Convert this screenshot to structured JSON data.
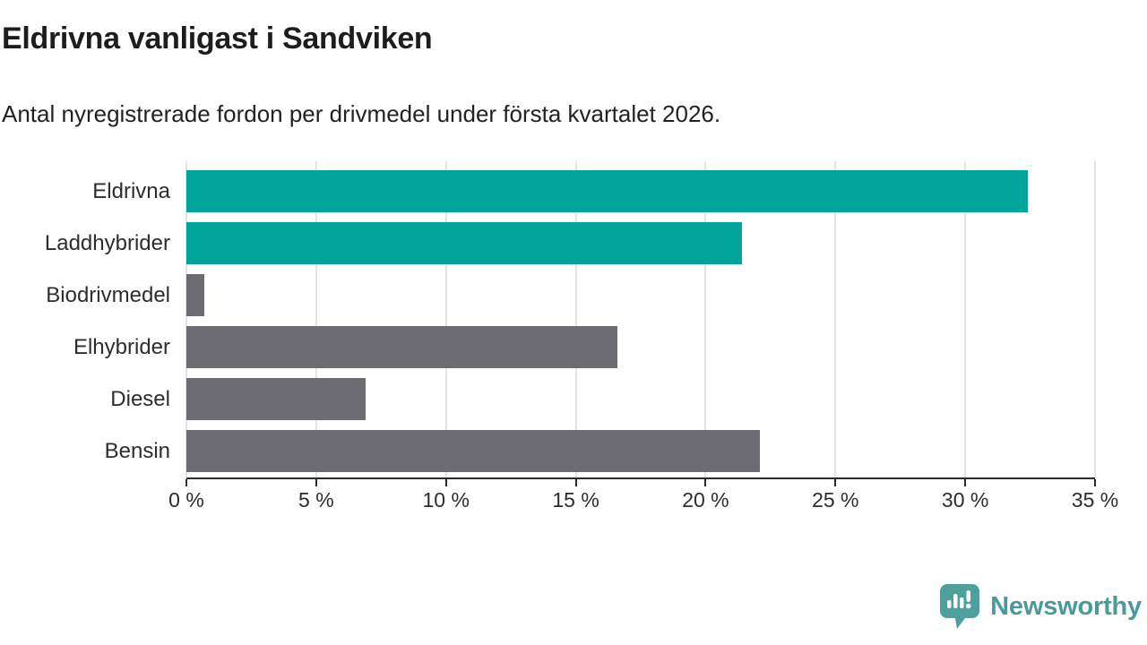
{
  "title": "Eldrivna vanligast i Sandviken",
  "subtitle": "Antal nyregistrerade fordon per drivmedel under första kvartalet 2026.",
  "chart_data": {
    "type": "bar",
    "orientation": "horizontal",
    "categories": [
      "Eldrivna",
      "Laddhybrider",
      "Biodrivmedel",
      "Elhybrider",
      "Diesel",
      "Bensin"
    ],
    "values": [
      32.4,
      21.4,
      0.7,
      16.6,
      6.9,
      22.1
    ],
    "bar_colors": [
      "#00a49a",
      "#00a49a",
      "#6e6c73",
      "#6e6c73",
      "#6e6c73",
      "#6e6c73"
    ],
    "title": "Eldrivna vanligast i Sandviken",
    "subtitle": "Antal nyregistrerade fordon per drivmedel under första kvartalet 2026.",
    "xlabel": "",
    "ylabel": "",
    "xlim": [
      0,
      35
    ],
    "x_ticks": [
      0,
      5,
      10,
      15,
      20,
      25,
      30,
      35
    ],
    "x_tick_labels": [
      "0 %",
      "5 %",
      "10 %",
      "15 %",
      "20 %",
      "25 %",
      "30 %",
      "35 %"
    ],
    "grid": true,
    "legend": false,
    "unit": "percent"
  },
  "colors": {
    "accent_teal": "#00a49a",
    "neutral_grey": "#6e6c73",
    "gridline": "#e4e4e4",
    "axis_line": "#2b2b2b",
    "text": "#1d1d1b",
    "logo_teal": "#4da09c"
  },
  "footer": {
    "brand": "Newsworthy"
  }
}
